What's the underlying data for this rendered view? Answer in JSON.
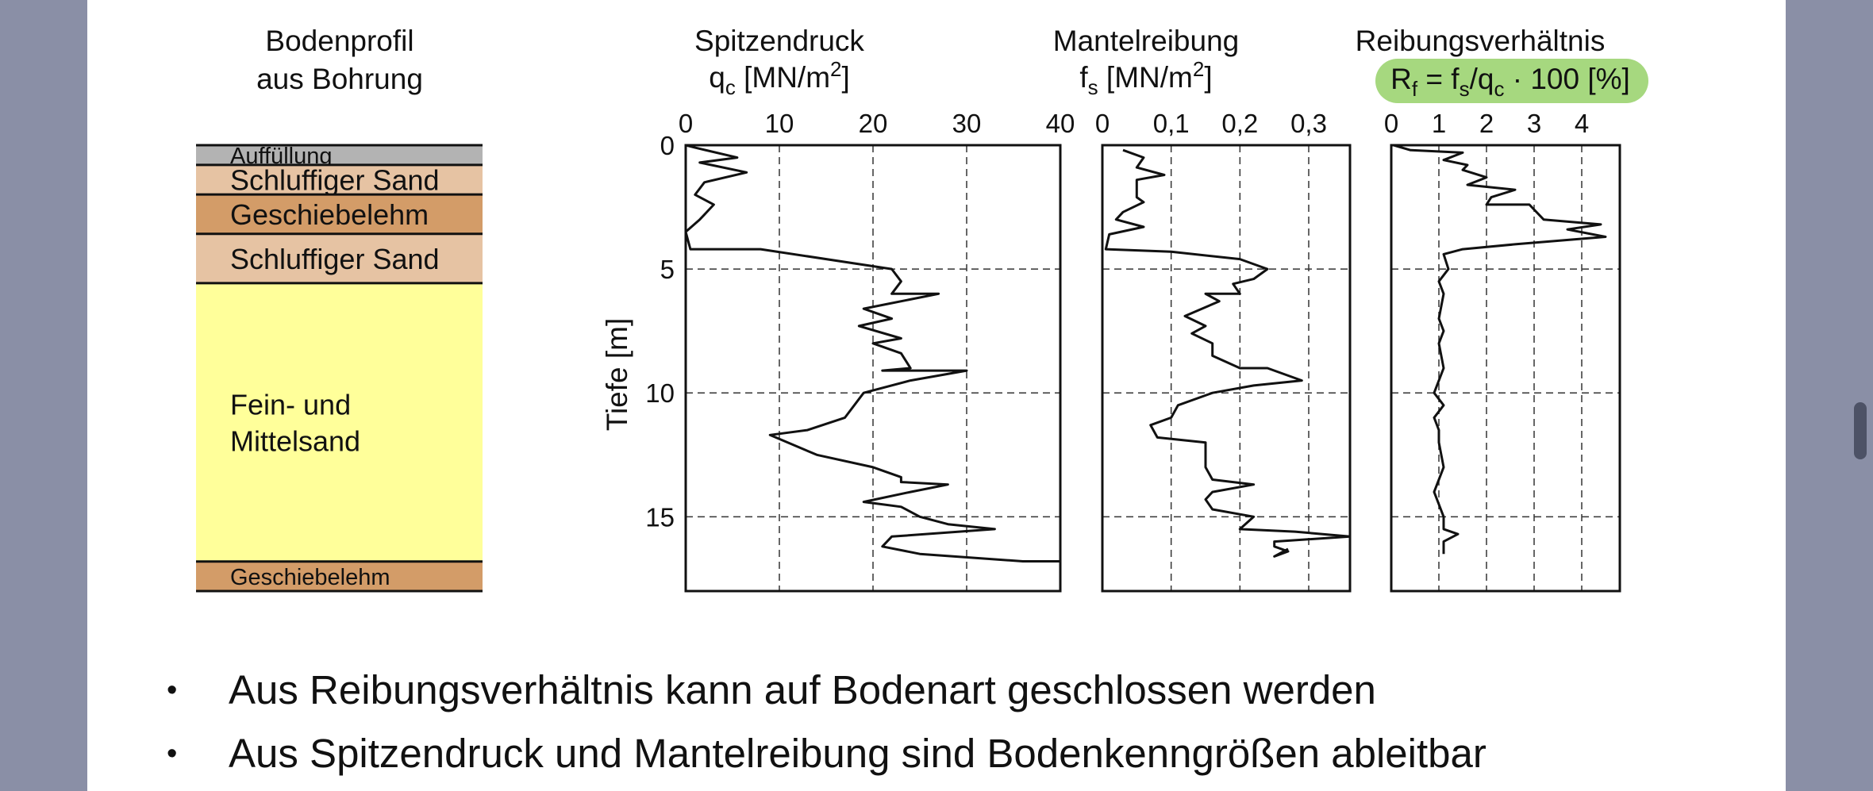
{
  "profile": {
    "title_line1": "Bodenprofil",
    "title_line2": "aus Bohrung",
    "layers": [
      {
        "label": "Auffüllung",
        "top": 0,
        "bottom": 0.8,
        "color": "#b3b3b3",
        "label_size": "small"
      },
      {
        "label": "Schluffiger Sand",
        "top": 0.8,
        "bottom": 2.0,
        "color": "#e6c3a3",
        "label_size": "large"
      },
      {
        "label": "Geschiebelehm",
        "top": 2.0,
        "bottom": 3.6,
        "color": "#d39c68",
        "label_size": "large"
      },
      {
        "label": "Schluffiger Sand",
        "top": 3.6,
        "bottom": 5.6,
        "color": "#e6c3a3",
        "label_size": "large"
      },
      {
        "label": "Fein- und\nMittelsand",
        "top": 5.6,
        "bottom": 16.9,
        "color": "#ffff9a",
        "label_size": "large"
      },
      {
        "label": "Geschiebelehm",
        "top": 16.9,
        "bottom": 18.1,
        "color": "#d39c68",
        "label_size": "small"
      }
    ]
  },
  "chart_data": [
    {
      "type": "line",
      "title": "Spitzendruck",
      "xlabel": "q_c [MN/m²]",
      "ylabel": "Tiefe [m]",
      "xlim": [
        0,
        40
      ],
      "ylim": [
        0,
        18
      ],
      "x_ticks": [
        "0",
        "10",
        "20",
        "30",
        "40"
      ],
      "y_ticks": [
        "0",
        "5",
        "10",
        "15"
      ],
      "grid": true,
      "series": [
        {
          "points": [
            [
              0,
              0
            ],
            [
              1,
              0.1
            ],
            [
              5.5,
              0.5
            ],
            [
              1.5,
              0.7
            ],
            [
              6.5,
              1.1
            ],
            [
              2,
              1.5
            ],
            [
              1,
              2
            ],
            [
              3,
              2.4
            ],
            [
              1.5,
              3
            ],
            [
              0,
              3.5
            ],
            [
              0.5,
              4.2
            ],
            [
              8,
              4.2
            ],
            [
              22,
              5
            ],
            [
              23,
              5.5
            ],
            [
              22,
              6
            ],
            [
              27,
              6
            ],
            [
              19,
              6.6
            ],
            [
              22,
              7
            ],
            [
              18.5,
              7.3
            ],
            [
              23,
              7.8
            ],
            [
              20,
              8
            ],
            [
              23,
              8.4
            ],
            [
              24,
              9
            ],
            [
              21,
              9.1
            ],
            [
              30,
              9.1
            ],
            [
              24,
              9.5
            ],
            [
              19,
              10
            ],
            [
              17,
              11
            ],
            [
              13,
              11.5
            ],
            [
              9,
              11.7
            ],
            [
              14,
              12.5
            ],
            [
              20,
              13
            ],
            [
              23,
              13.4
            ],
            [
              23,
              13.6
            ],
            [
              28,
              13.7
            ],
            [
              24,
              14
            ],
            [
              19,
              14.4
            ],
            [
              23,
              14.6
            ],
            [
              25,
              15
            ],
            [
              28,
              15.3
            ],
            [
              33,
              15.5
            ],
            [
              22,
              15.8
            ],
            [
              21,
              16.2
            ],
            [
              25,
              16.5
            ],
            [
              36,
              16.8
            ],
            [
              40,
              16.8
            ]
          ]
        }
      ]
    },
    {
      "type": "line",
      "title": "Mantelreibung",
      "xlabel": "f_s [MN/m²]",
      "xlim": [
        0,
        0.36
      ],
      "x_ticks": [
        "0",
        "0,1",
        "0,2",
        "0,3"
      ],
      "grid": true,
      "series": [
        {
          "points": [
            [
              0.03,
              0.2
            ],
            [
              0.06,
              0.5
            ],
            [
              0.05,
              0.9
            ],
            [
              0.09,
              1.2
            ],
            [
              0.05,
              1.4
            ],
            [
              0.05,
              2.1
            ],
            [
              0.06,
              2.3
            ],
            [
              0.03,
              2.7
            ],
            [
              0.02,
              3
            ],
            [
              0.06,
              3.3
            ],
            [
              0.01,
              3.6
            ],
            [
              0.005,
              4.2
            ],
            [
              0.1,
              4.3
            ],
            [
              0.2,
              4.6
            ],
            [
              0.24,
              5
            ],
            [
              0.22,
              5.4
            ],
            [
              0.19,
              5.6
            ],
            [
              0.2,
              6
            ],
            [
              0.15,
              6
            ],
            [
              0.17,
              6.3
            ],
            [
              0.12,
              6.9
            ],
            [
              0.15,
              7.3
            ],
            [
              0.13,
              7.6
            ],
            [
              0.16,
              8
            ],
            [
              0.16,
              8.5
            ],
            [
              0.2,
              9
            ],
            [
              0.24,
              9
            ],
            [
              0.29,
              9.5
            ],
            [
              0.22,
              9.7
            ],
            [
              0.16,
              10
            ],
            [
              0.11,
              10.5
            ],
            [
              0.1,
              11
            ],
            [
              0.07,
              11.3
            ],
            [
              0.08,
              11.8
            ],
            [
              0.15,
              12
            ],
            [
              0.15,
              12.5
            ],
            [
              0.15,
              13
            ],
            [
              0.16,
              13.5
            ],
            [
              0.22,
              13.7
            ],
            [
              0.16,
              14
            ],
            [
              0.15,
              14.3
            ],
            [
              0.16,
              14.7
            ],
            [
              0.22,
              15
            ],
            [
              0.2,
              15.5
            ],
            [
              0.28,
              15.6
            ],
            [
              0.36,
              15.8
            ],
            [
              0.25,
              16
            ],
            [
              0.25,
              16.2
            ],
            [
              0.27,
              16.4
            ],
            [
              0.25,
              16.6
            ],
            [
              0.27,
              16.3
            ]
          ]
        }
      ]
    },
    {
      "type": "line",
      "title": "Reibungsverhältnis",
      "xlabel": "R_f = f_s/q_c · 100 [%]",
      "xlim": [
        0,
        4.8
      ],
      "x_ticks": [
        "0",
        "1",
        "2",
        "3",
        "4"
      ],
      "grid": true,
      "series": [
        {
          "points": [
            [
              0.05,
              0
            ],
            [
              0.4,
              0.2
            ],
            [
              1.5,
              0.3
            ],
            [
              1.1,
              0.6
            ],
            [
              1.6,
              0.8
            ],
            [
              1.5,
              1
            ],
            [
              2,
              1.3
            ],
            [
              1.6,
              1.6
            ],
            [
              2.6,
              1.8
            ],
            [
              2.1,
              2.1
            ],
            [
              2,
              2.4
            ],
            [
              2.9,
              2.4
            ],
            [
              3.2,
              3
            ],
            [
              4.4,
              3.2
            ],
            [
              3.7,
              3.4
            ],
            [
              4.5,
              3.7
            ],
            [
              2.6,
              4
            ],
            [
              1.5,
              4.2
            ],
            [
              1.1,
              4.4
            ],
            [
              1.2,
              5
            ],
            [
              1,
              5.5
            ],
            [
              1.1,
              6
            ],
            [
              1,
              7
            ],
            [
              1.1,
              7.5
            ],
            [
              1,
              8
            ],
            [
              1.1,
              9
            ],
            [
              0.9,
              10
            ],
            [
              1.1,
              10.5
            ],
            [
              0.9,
              11
            ],
            [
              1,
              11.5
            ],
            [
              1,
              12
            ],
            [
              1.1,
              13
            ],
            [
              0.9,
              14
            ],
            [
              1.1,
              15
            ],
            [
              1.1,
              15.5
            ],
            [
              1.4,
              15.7
            ],
            [
              1.1,
              16
            ],
            [
              1.1,
              16.5
            ]
          ]
        }
      ]
    }
  ],
  "bullets": [
    "Aus Reibungsverhältnis kann auf Bodenart geschlossen werden",
    "Aus Spitzendruck und Mantelreibung sind Bodenkenngrößen ableitbar"
  ],
  "colors": {
    "highlight": "#a6d87f",
    "line": "#111111",
    "grid": "#333333",
    "background": "#8a8fa6"
  }
}
